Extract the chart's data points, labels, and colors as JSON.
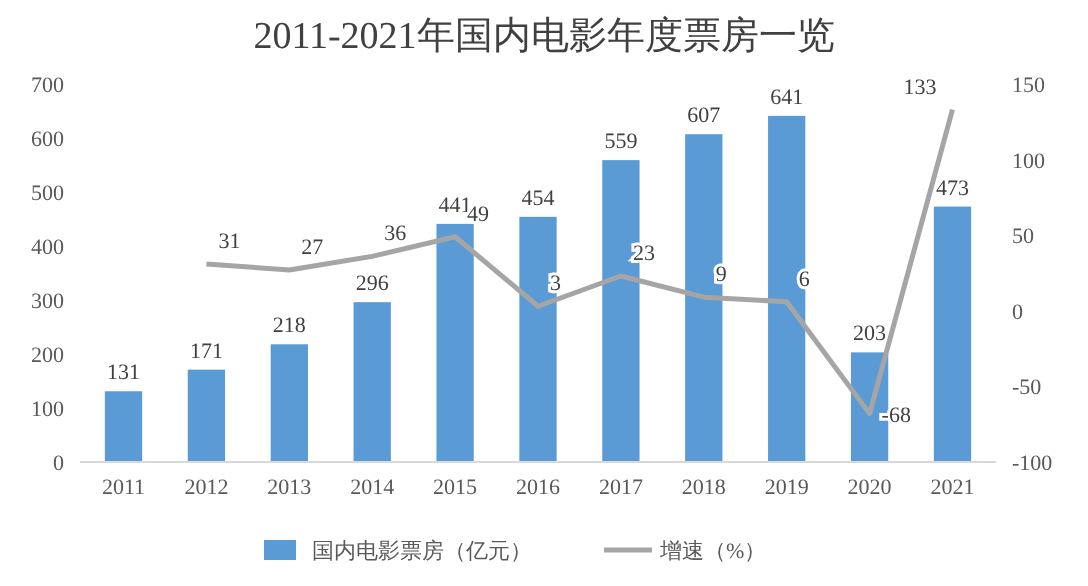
{
  "chart_data": {
    "type": "bar",
    "title": "2011-2021年国内电影年度票房一览",
    "categories": [
      "2011",
      "2012",
      "2013",
      "2014",
      "2015",
      "2016",
      "2017",
      "2018",
      "2019",
      "2020",
      "2021"
    ],
    "series": [
      {
        "name": "国内电影票房（亿元）",
        "color": "#5b9bd5",
        "values": [
          131,
          171,
          218,
          296,
          441,
          454,
          559,
          607,
          641,
          203,
          473
        ]
      },
      {
        "name": "增速（%）",
        "type": "line",
        "axis": "y2",
        "color": "#a5a5a5",
        "values": [
          null,
          31,
          27,
          36,
          49,
          3,
          23,
          9,
          6,
          -68,
          133
        ]
      }
    ],
    "ylim": [
      0,
      700
    ],
    "yticks": [
      0,
      100,
      200,
      300,
      400,
      500,
      600,
      700
    ],
    "y2lim": [
      -100,
      150
    ],
    "y2ticks": [
      -100,
      -50,
      0,
      50,
      100,
      150
    ],
    "data_labels": true,
    "legend": "bottom",
    "grid": false
  }
}
